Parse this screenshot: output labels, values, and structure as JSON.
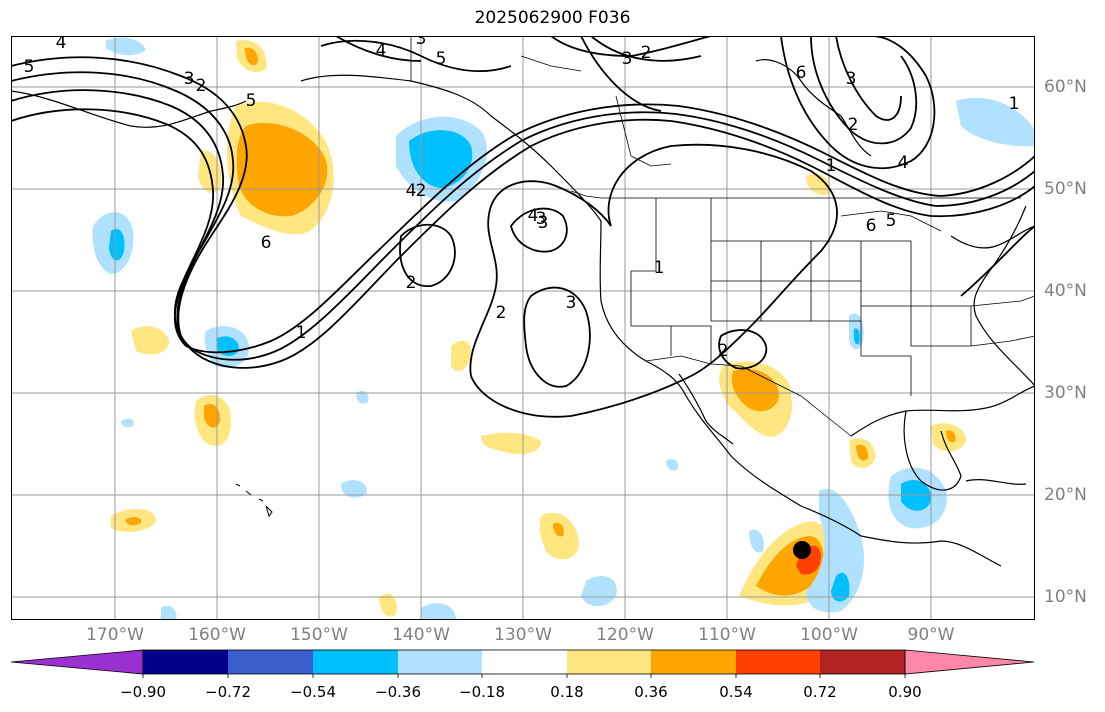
{
  "title": "2025062900 F036",
  "lon_labels": [
    "170°W",
    "160°W",
    "150°W",
    "140°W",
    "130°W",
    "120°W",
    "110°W",
    "100°W",
    "90°W"
  ],
  "lat_labels": [
    "60°N",
    "50°N",
    "40°N",
    "30°N",
    "20°N",
    "10°N"
  ],
  "contour_labels": [
    "5",
    "4",
    "3",
    "2",
    "4",
    "3",
    "3",
    "2",
    "6",
    "3",
    "2",
    "1",
    "5",
    "4",
    "1",
    "5",
    "6",
    "2",
    "4",
    "3",
    "2",
    "3",
    "3",
    "2",
    "1",
    "6",
    "5",
    "2",
    "1",
    "4"
  ],
  "colorbar": {
    "ticks": [
      "−0.90",
      "−0.72",
      "−0.54",
      "−0.36",
      "−0.18",
      "0.18",
      "0.36",
      "0.54",
      "0.72",
      "0.90"
    ],
    "colors": [
      "#9b30d0",
      "#00008b",
      "#3a5fcd",
      "#00bfff",
      "#b0e2ff",
      "#ffffff",
      "#ffe680",
      "#ffa500",
      "#ff4000",
      "#b22222",
      "#ff88aa"
    ],
    "extend": "both"
  },
  "marker": {
    "type": "storm-center",
    "color": "#000000"
  }
}
